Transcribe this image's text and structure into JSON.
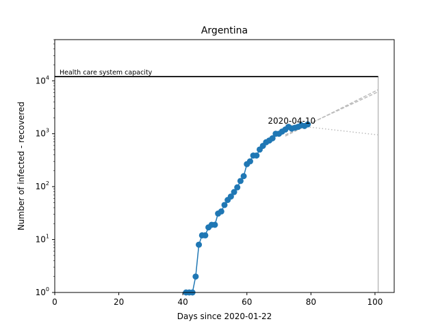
{
  "chart_data": {
    "type": "line",
    "title": "Argentina",
    "xlabel": "Days since 2020-01-22",
    "ylabel": "Number of infected - recovered",
    "xlim": [
      0,
      106
    ],
    "ylim": [
      1,
      60000
    ],
    "yscale": "log",
    "grid": false,
    "x_ticks": [
      0,
      20,
      40,
      60,
      80,
      100
    ],
    "x_tick_labels": [
      "0",
      "20",
      "40",
      "60",
      "80",
      "100"
    ],
    "y_ticks": [
      1,
      10,
      100,
      1000,
      10000
    ],
    "y_tick_labels": [
      {
        "base": "10",
        "exp": "0"
      },
      {
        "base": "10",
        "exp": "1"
      },
      {
        "base": "10",
        "exp": "2"
      },
      {
        "base": "10",
        "exp": "3"
      },
      {
        "base": "10",
        "exp": "4"
      }
    ],
    "series": [
      {
        "color": "#1f77b4",
        "marker": "circle",
        "x": [
          41,
          42,
          43,
          44,
          45,
          46,
          47,
          48,
          49,
          50,
          51,
          52,
          53,
          54,
          55,
          56,
          57,
          58,
          59,
          60,
          61,
          62,
          63,
          64,
          65,
          66,
          67,
          68,
          69,
          70,
          71,
          72,
          73,
          74,
          75,
          76,
          77,
          78,
          79
        ],
        "y": [
          1,
          1,
          1,
          2,
          8,
          12,
          12,
          17,
          19,
          19,
          31,
          34,
          45,
          56,
          65,
          79,
          97,
          128,
          158,
          266,
          301,
          387,
          387,
          502,
          589,
          690,
          745,
          820,
          1000,
          1000,
          1100,
          1200,
          1350,
          1250,
          1300,
          1350,
          1450,
          1400,
          1500
        ]
      }
    ],
    "projections": [
      {
        "style": "dashed",
        "color": "#bbbbbb",
        "x": [
          72,
          101
        ],
        "y": [
          900,
          6800
        ]
      },
      {
        "style": "dashed",
        "color": "#bbbbbb",
        "x": [
          72,
          101
        ],
        "y": [
          950,
          6200
        ]
      },
      {
        "style": "dotted",
        "color": "#bbbbbb",
        "x": [
          72,
          101
        ],
        "y": [
          1500,
          950
        ]
      }
    ],
    "capacity": {
      "label": "Health care system capacity",
      "value": 12000,
      "x_end": 101,
      "color": "#000000"
    },
    "vertical_line": {
      "x": 101,
      "color": "#bbbbbb"
    },
    "annotation": {
      "text": "2020-04-10",
      "x": 74,
      "y": 1750
    }
  }
}
